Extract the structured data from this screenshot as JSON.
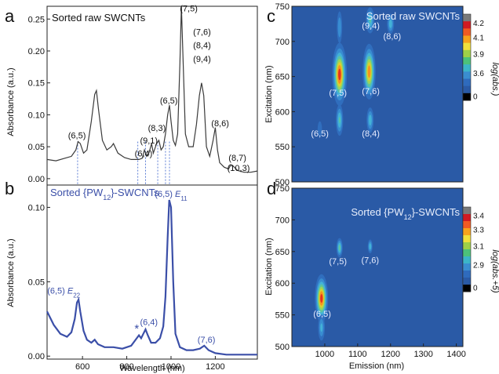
{
  "panels": [
    {
      "letter": "a",
      "title": "Sorted raw SWCNTs"
    },
    {
      "letter": "b",
      "title_main": "Sorted {PW",
      "title_sub": "12",
      "title_end": "}-SWCNTs"
    },
    {
      "letter": "c",
      "title": "Sorted raw SWCNTs"
    },
    {
      "letter": "d",
      "title_main": "Sorted {PW",
      "title_sub": "12",
      "title_end": "}-SWCNTs"
    }
  ],
  "chart_data": [
    {
      "id": "a",
      "type": "line",
      "title": "Sorted raw SWCNTs",
      "ylabel": "Absorbance (a.u.)",
      "xlim": [
        440,
        1390
      ],
      "ylim": [
        -0.01,
        0.27
      ],
      "yticks": [
        0.0,
        0.05,
        0.1,
        0.15,
        0.2,
        0.25
      ],
      "ytick_labels": [
        "0.00",
        "0.05",
        "0.10",
        "0.15",
        "0.20",
        "0.25"
      ],
      "color": "#3a3a3a",
      "series": [
        {
          "x": [
            440,
            480,
            520,
            550,
            570,
            580,
            590,
            605,
            620,
            640,
            655,
            663,
            672,
            690,
            710,
            730,
            740,
            760,
            790,
            820,
            840,
            855,
            870,
            880,
            890,
            900,
            912,
            920,
            935,
            945,
            955,
            965,
            975,
            985,
            993,
            1000,
            1010,
            1020,
            1030,
            1040,
            1047,
            1055,
            1065,
            1080,
            1100,
            1115,
            1128,
            1138,
            1148,
            1160,
            1175,
            1190,
            1200,
            1210,
            1220,
            1240,
            1260,
            1270,
            1280,
            1300,
            1330,
            1360,
            1390
          ],
          "y": [
            0.03,
            0.028,
            0.032,
            0.035,
            0.045,
            0.058,
            0.055,
            0.04,
            0.045,
            0.09,
            0.132,
            0.138,
            0.11,
            0.06,
            0.045,
            0.05,
            0.055,
            0.04,
            0.033,
            0.03,
            0.03,
            0.03,
            0.032,
            0.045,
            0.035,
            0.04,
            0.055,
            0.04,
            0.055,
            0.06,
            0.045,
            0.05,
            0.07,
            0.1,
            0.115,
            0.09,
            0.06,
            0.052,
            0.07,
            0.18,
            0.27,
            0.18,
            0.07,
            0.05,
            0.05,
            0.085,
            0.13,
            0.15,
            0.13,
            0.05,
            0.035,
            0.06,
            0.08,
            0.045,
            0.025,
            0.018,
            0.015,
            0.022,
            0.02,
            0.013,
            0.01,
            0.01,
            0.012
          ]
        }
      ],
      "annotations": [
        {
          "text": "(6,5)",
          "x": 575,
          "y": 0.063
        },
        {
          "text": "(6,4)",
          "x": 876,
          "y": 0.035
        },
        {
          "text": "(9,1)",
          "x": 900,
          "y": 0.055
        },
        {
          "text": "(8,3)",
          "x": 936,
          "y": 0.075
        },
        {
          "text": "(6,5)",
          "x": 990,
          "y": 0.118
        },
        {
          "text": "(7,5)",
          "x": 1080,
          "y": 0.262
        },
        {
          "text": "(7,6)",
          "x": 1140,
          "y": 0.225
        },
        {
          "text": "(8,4)",
          "x": 1140,
          "y": 0.204
        },
        {
          "text": "(9,4)",
          "x": 1140,
          "y": 0.183
        },
        {
          "text": "(8,6)",
          "x": 1222,
          "y": 0.082
        },
        {
          "text": "(8,7)",
          "x": 1300,
          "y": 0.028
        },
        {
          "text": "(10,3)",
          "x": 1305,
          "y": 0.012
        }
      ],
      "dashed_lines": [
        578,
        850,
        885,
        940,
        975,
        993
      ]
    },
    {
      "id": "b",
      "type": "line",
      "title": "Sorted {PW12}-SWCNTs",
      "xlabel": "Wavelength (nm)",
      "ylabel": "Absorbance (a.u.)",
      "xlim": [
        440,
        1390
      ],
      "ylim": [
        -0.002,
        0.115
      ],
      "xticks": [
        600,
        800,
        1000,
        1200
      ],
      "xtick_labels": [
        "600",
        "800",
        "1000",
        "1200"
      ],
      "yticks": [
        0.0,
        0.05,
        0.1
      ],
      "ytick_labels": [
        "0.00",
        "0.05",
        "0.10"
      ],
      "color": "#3b4fa8",
      "series": [
        {
          "x": [
            440,
            470,
            500,
            530,
            550,
            565,
            575,
            582,
            590,
            605,
            620,
            640,
            655,
            670,
            700,
            740,
            780,
            820,
            845,
            855,
            865,
            875,
            885,
            895,
            910,
            930,
            950,
            965,
            975,
            985,
            992,
            1000,
            1010,
            1020,
            1040,
            1070,
            1100,
            1130,
            1150,
            1170,
            1200,
            1250,
            1300,
            1350,
            1390
          ],
          "y": [
            0.03,
            0.021,
            0.015,
            0.013,
            0.016,
            0.025,
            0.036,
            0.038,
            0.03,
            0.017,
            0.011,
            0.009,
            0.011,
            0.008,
            0.006,
            0.006,
            0.005,
            0.007,
            0.012,
            0.014,
            0.012,
            0.015,
            0.018,
            0.014,
            0.009,
            0.009,
            0.012,
            0.02,
            0.04,
            0.08,
            0.105,
            0.1,
            0.05,
            0.015,
            0.006,
            0.004,
            0.004,
            0.005,
            0.007,
            0.004,
            0.002,
            0.001,
            0.001,
            0.001,
            0.001
          ]
        }
      ],
      "annotations": [
        {
          "text": "(6,5)",
          "sub": "11",
          "x": 1000,
          "y": 0.107
        },
        {
          "text": "(6,5)",
          "sub": "22",
          "x": 515,
          "y": 0.042
        },
        {
          "text": "(6,4)",
          "x": 900,
          "y": 0.021
        },
        {
          "text": "*",
          "x": 845,
          "y": 0.016
        },
        {
          "text": "(7,6)",
          "x": 1160,
          "y": 0.009
        }
      ]
    },
    {
      "id": "c",
      "type": "heatmap",
      "title": "Sorted raw SWCNTs",
      "ylabel": "Excitation (nm)",
      "xlim": [
        900,
        1420
      ],
      "ylim": [
        500,
        750
      ],
      "yticks": [
        500,
        550,
        600,
        650,
        700,
        750
      ],
      "ytick_labels": [
        "500",
        "550",
        "600",
        "650",
        "700",
        "750"
      ],
      "colorbar_label": "log(abs.)",
      "colorbar_ticks": [
        "4.2",
        "4.1",
        "3.9",
        "3.6",
        "0"
      ],
      "peaks": [
        {
          "x": 1045,
          "y": 653,
          "amp": 1.0,
          "sx": 10,
          "sy": 20
        },
        {
          "x": 1135,
          "y": 657,
          "amp": 0.9,
          "sx": 9,
          "sy": 18
        },
        {
          "x": 1045,
          "y": 588,
          "amp": 0.45,
          "sx": 6,
          "sy": 12
        },
        {
          "x": 1138,
          "y": 588,
          "amp": 0.4,
          "sx": 6,
          "sy": 10
        },
        {
          "x": 1138,
          "y": 730,
          "amp": 0.45,
          "sx": 7,
          "sy": 10
        },
        {
          "x": 1200,
          "y": 725,
          "amp": 0.4,
          "sx": 6,
          "sy": 8
        },
        {
          "x": 1045,
          "y": 720,
          "amp": 0.3,
          "sx": 5,
          "sy": 14
        },
        {
          "x": 985,
          "y": 575,
          "amp": 0.15,
          "sx": 6,
          "sy": 10
        }
      ],
      "annotations": [
        {
          "text": "(9,4)",
          "x": 1140,
          "y": 718
        },
        {
          "text": "(8,6)",
          "x": 1205,
          "y": 703
        },
        {
          "text": "(7,5)",
          "x": 1040,
          "y": 623
        },
        {
          "text": "(7,6)",
          "x": 1140,
          "y": 625
        },
        {
          "text": "(6,5)",
          "x": 985,
          "y": 565
        },
        {
          "text": "(8,4)",
          "x": 1140,
          "y": 565
        }
      ]
    },
    {
      "id": "d",
      "type": "heatmap",
      "title": "Sorted {PW12}-SWCNTs",
      "xlabel": "Emission (nm)",
      "ylabel": "Excitation (nm)",
      "xlim": [
        900,
        1420
      ],
      "ylim": [
        500,
        750
      ],
      "xticks": [
        1000,
        1100,
        1200,
        1300,
        1400
      ],
      "xtick_labels": [
        "1000",
        "1100",
        "1200",
        "1300",
        "1400"
      ],
      "yticks": [
        500,
        550,
        600,
        650,
        700,
        750
      ],
      "ytick_labels": [
        "500",
        "550",
        "600",
        "650",
        "700",
        "750"
      ],
      "colorbar_label": "log(abs.+5)",
      "colorbar_ticks": [
        "3.4",
        "3.3",
        "3.1",
        "2.9",
        "0"
      ],
      "peaks": [
        {
          "x": 990,
          "y": 576,
          "amp": 1.0,
          "sx": 9,
          "sy": 17
        },
        {
          "x": 990,
          "y": 530,
          "amp": 0.35,
          "sx": 6,
          "sy": 12
        },
        {
          "x": 1045,
          "y": 656,
          "amp": 0.5,
          "sx": 5,
          "sy": 8
        },
        {
          "x": 1138,
          "y": 658,
          "amp": 0.42,
          "sx": 4,
          "sy": 6
        }
      ],
      "annotations": [
        {
          "text": "(7,5)",
          "x": 1040,
          "y": 630
        },
        {
          "text": "(7,6)",
          "x": 1138,
          "y": 632
        },
        {
          "text": "(6,5)",
          "x": 992,
          "y": 547
        }
      ]
    }
  ],
  "colors": {
    "spectrum_a": "#3a3a3a",
    "spectrum_b": "#3b4fa8",
    "label_blue": "#3b4fa8",
    "heatmap_bg": "#2a5aa6"
  }
}
